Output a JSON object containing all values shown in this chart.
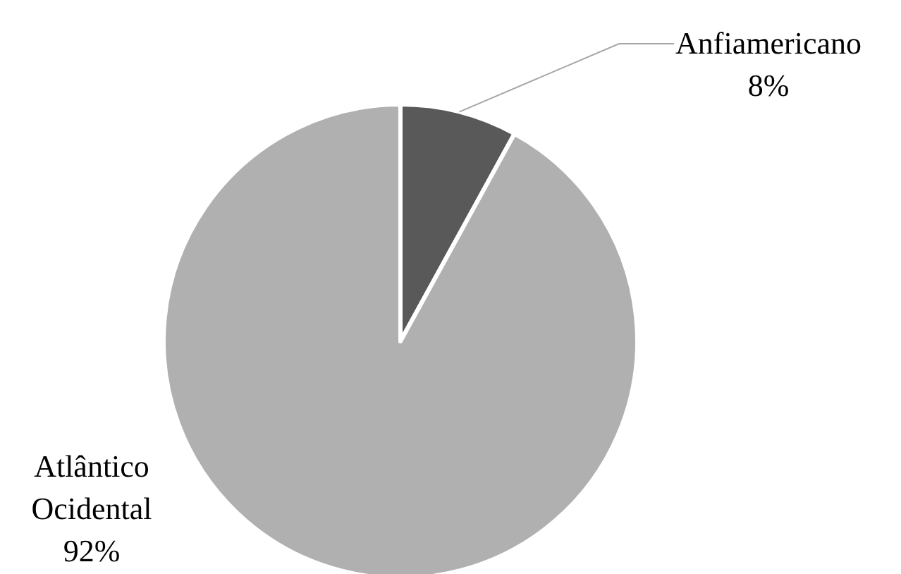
{
  "chart_data": {
    "type": "pie",
    "categories": [
      "Anfiamericano",
      "Atlântico Ocidental"
    ],
    "values": [
      8,
      92
    ],
    "colors": [
      "#595959",
      "#b0b0b0"
    ],
    "value_labels": [
      "8%",
      "92%"
    ]
  }
}
